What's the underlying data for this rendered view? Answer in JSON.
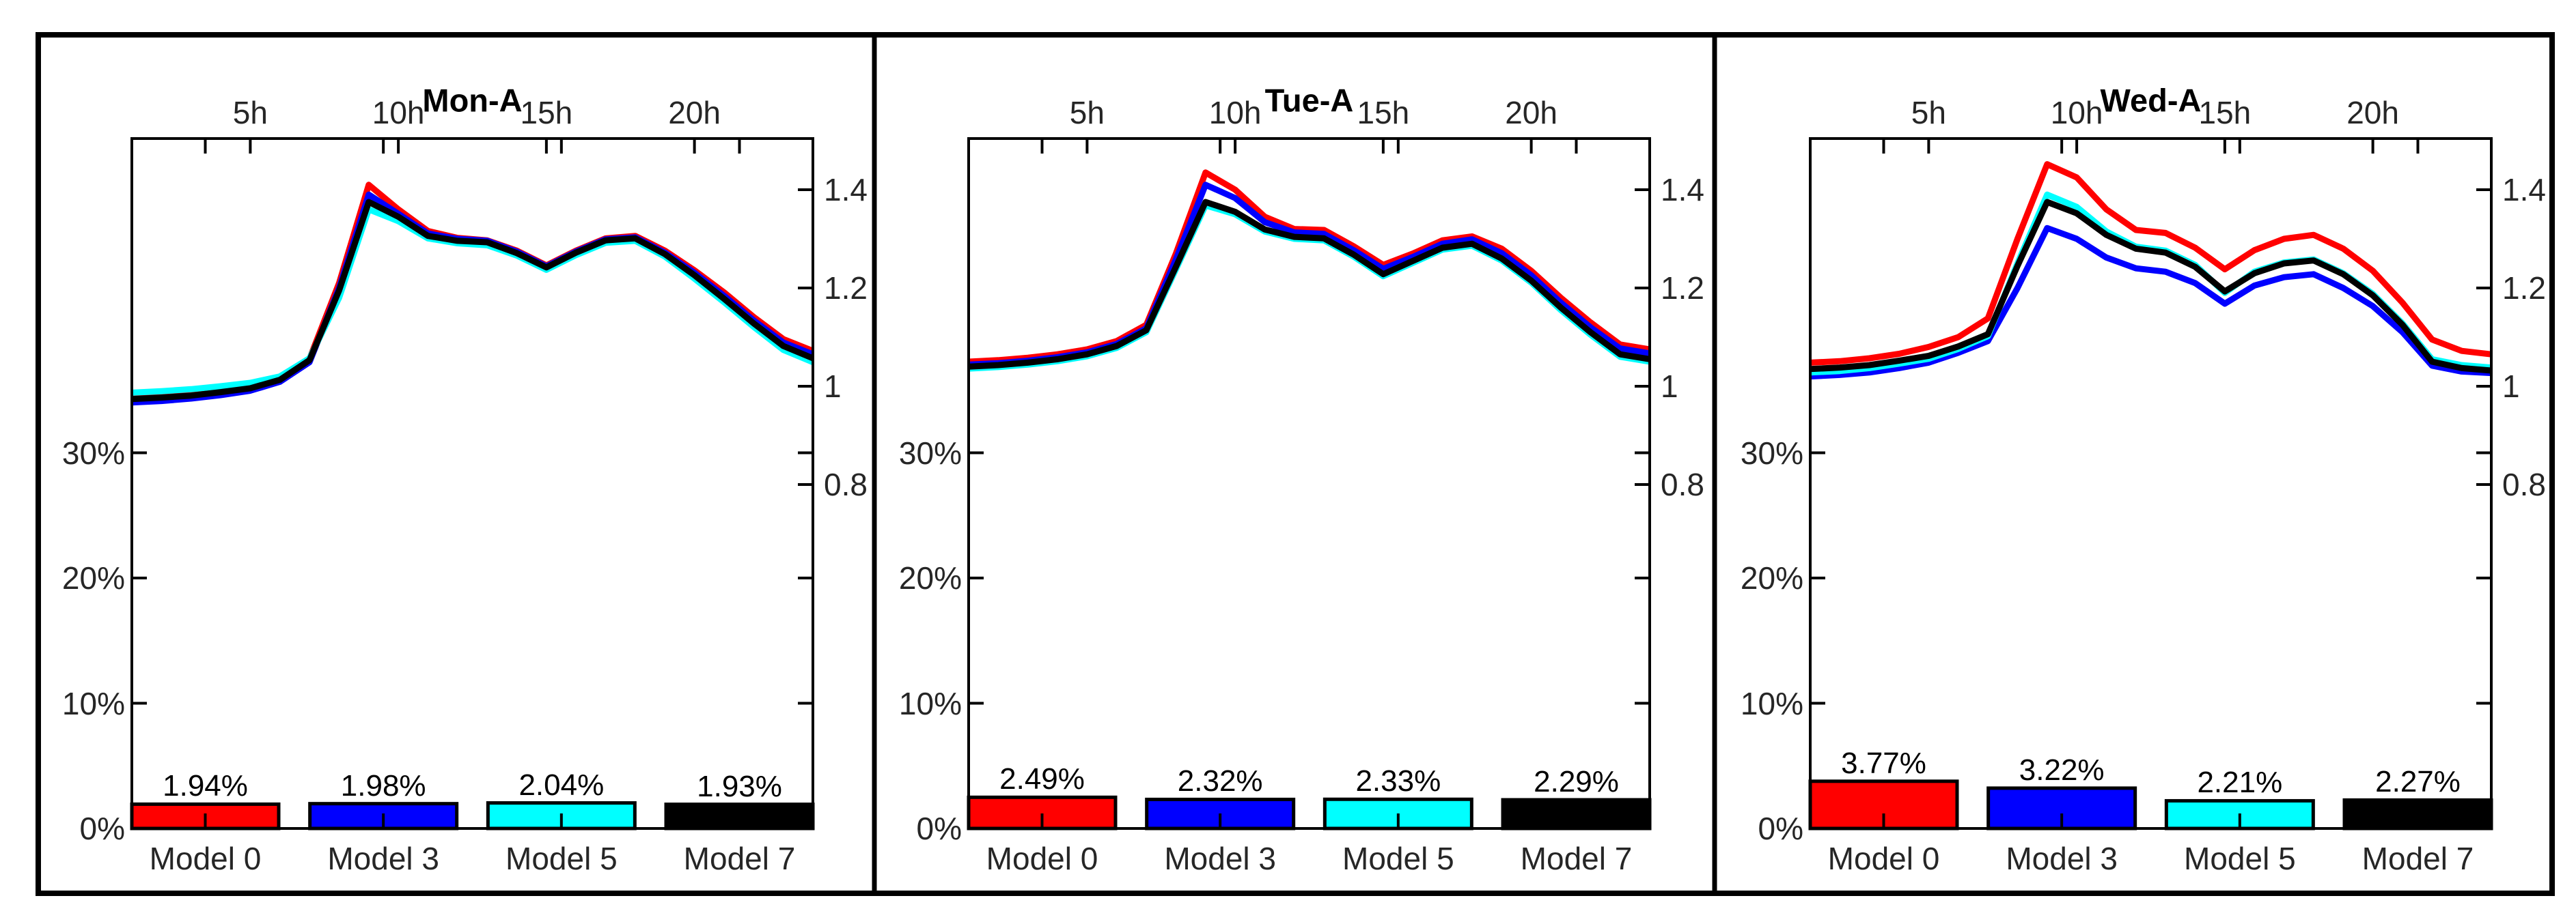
{
  "figure": {
    "background": "#ffffff",
    "frame_color": "#000000"
  },
  "models": [
    {
      "name": "Model 0",
      "color": "#ff0000"
    },
    {
      "name": "Model 3",
      "color": "#0000ff"
    },
    {
      "name": "Model 5",
      "color": "#00ffff"
    },
    {
      "name": "Model 7",
      "color": "#000000"
    }
  ],
  "chart_data": [
    {
      "type": "line+bar",
      "title": "Mon-A",
      "x_hours": [
        1,
        2,
        3,
        4,
        5,
        6,
        7,
        8,
        9,
        10,
        11,
        12,
        13,
        14,
        15,
        16,
        17,
        18,
        19,
        20,
        21,
        22,
        23,
        24
      ],
      "top_axis": {
        "tick_hours": [
          5,
          10,
          15,
          20
        ],
        "labels": [
          "5h",
          "10h",
          "15h",
          "20h"
        ],
        "range": [
          1,
          24
        ]
      },
      "right_axis": {
        "tick_values": [
          0.8,
          1,
          1.2,
          1.4
        ],
        "labels": [
          "0.8",
          "1",
          "1.2",
          "1.4"
        ]
      },
      "left_axis": {
        "tick_values": [
          0,
          10,
          20,
          30
        ],
        "labels": [
          "0%",
          "10%",
          "20%",
          "30%"
        ],
        "max_percent": 55
      },
      "series": [
        {
          "name": "Model 0",
          "color": "#ff0000",
          "values": [
            0.981,
            0.984,
            0.988,
            0.994,
            1.002,
            1.017,
            1.056,
            1.21,
            1.41,
            1.36,
            1.316,
            1.302,
            1.297,
            1.276,
            1.246,
            1.276,
            1.301,
            1.306,
            1.276,
            1.236,
            1.191,
            1.141,
            1.096,
            1.072
          ]
        },
        {
          "name": "Model 3",
          "color": "#0000ff",
          "values": [
            0.967,
            0.97,
            0.975,
            0.982,
            0.991,
            1.009,
            1.049,
            1.2,
            1.39,
            1.351,
            1.311,
            1.3,
            1.296,
            1.274,
            1.244,
            1.274,
            1.299,
            1.303,
            1.272,
            1.231,
            1.184,
            1.134,
            1.089,
            1.065
          ]
        },
        {
          "name": "Model 5",
          "color": "#00ffff",
          "values": [
            0.987,
            0.99,
            0.994,
            1.0,
            1.007,
            1.02,
            1.057,
            1.18,
            1.36,
            1.336,
            1.301,
            1.291,
            1.287,
            1.266,
            1.237,
            1.267,
            1.292,
            1.296,
            1.264,
            1.219,
            1.171,
            1.121,
            1.074,
            1.049
          ]
        },
        {
          "name": "Model 7",
          "color": "#000000",
          "values": [
            0.974,
            0.977,
            0.981,
            0.988,
            0.996,
            1.013,
            1.053,
            1.195,
            1.375,
            1.345,
            1.306,
            1.296,
            1.293,
            1.271,
            1.242,
            1.272,
            1.297,
            1.301,
            1.269,
            1.226,
            1.178,
            1.128,
            1.082,
            1.057
          ]
        }
      ],
      "bars": {
        "categories": [
          "Model 0",
          "Model 3",
          "Model 5",
          "Model 7"
        ],
        "values": [
          1.94,
          1.98,
          2.04,
          1.93
        ],
        "labels": [
          "1.94%",
          "1.98%",
          "2.04%",
          "1.93%"
        ],
        "colors": [
          "#ff0000",
          "#0000ff",
          "#00ffff",
          "#000000"
        ]
      }
    },
    {
      "type": "line+bar",
      "title": "Tue-A",
      "x_hours": [
        1,
        2,
        3,
        4,
        5,
        6,
        7,
        8,
        9,
        10,
        11,
        12,
        13,
        14,
        15,
        16,
        17,
        18,
        19,
        20,
        21,
        22,
        23,
        24
      ],
      "top_axis": {
        "tick_hours": [
          5,
          10,
          15,
          20
        ],
        "labels": [
          "5h",
          "10h",
          "15h",
          "20h"
        ],
        "range": [
          1,
          24
        ]
      },
      "right_axis": {
        "tick_values": [
          0.8,
          1,
          1.2,
          1.4
        ],
        "labels": [
          "0.8",
          "1",
          "1.2",
          "1.4"
        ]
      },
      "left_axis": {
        "tick_values": [
          0,
          10,
          20,
          30
        ],
        "labels": [
          "0%",
          "10%",
          "20%",
          "30%"
        ],
        "max_percent": 55
      },
      "series": [
        {
          "name": "Model 0",
          "color": "#ff0000",
          "values": [
            1.05,
            1.053,
            1.058,
            1.065,
            1.075,
            1.092,
            1.125,
            1.27,
            1.435,
            1.4,
            1.345,
            1.32,
            1.318,
            1.285,
            1.247,
            1.27,
            1.297,
            1.305,
            1.28,
            1.235,
            1.18,
            1.13,
            1.085,
            1.075
          ]
        },
        {
          "name": "Model 3",
          "color": "#0000ff",
          "values": [
            1.044,
            1.047,
            1.052,
            1.059,
            1.069,
            1.086,
            1.118,
            1.258,
            1.41,
            1.383,
            1.334,
            1.313,
            1.31,
            1.277,
            1.239,
            1.263,
            1.29,
            1.299,
            1.271,
            1.226,
            1.17,
            1.12,
            1.077,
            1.067
          ]
        },
        {
          "name": "Model 5",
          "color": "#00ffff",
          "values": [
            1.036,
            1.039,
            1.044,
            1.051,
            1.061,
            1.078,
            1.11,
            1.238,
            1.368,
            1.35,
            1.315,
            1.3,
            1.297,
            1.264,
            1.224,
            1.251,
            1.278,
            1.286,
            1.256,
            1.211,
            1.155,
            1.105,
            1.06,
            1.05
          ]
        },
        {
          "name": "Model 7",
          "color": "#000000",
          "values": [
            1.04,
            1.043,
            1.048,
            1.055,
            1.065,
            1.082,
            1.114,
            1.243,
            1.375,
            1.355,
            1.319,
            1.304,
            1.301,
            1.268,
            1.228,
            1.255,
            1.282,
            1.29,
            1.26,
            1.215,
            1.16,
            1.11,
            1.065,
            1.055
          ]
        }
      ],
      "bars": {
        "categories": [
          "Model 0",
          "Model 3",
          "Model 5",
          "Model 7"
        ],
        "values": [
          2.49,
          2.32,
          2.33,
          2.29
        ],
        "labels": [
          "2.49%",
          "2.32%",
          "2.33%",
          "2.29%"
        ],
        "colors": [
          "#ff0000",
          "#0000ff",
          "#00ffff",
          "#000000"
        ]
      }
    },
    {
      "type": "line+bar",
      "title": "Wed-A",
      "x_hours": [
        1,
        2,
        3,
        4,
        5,
        6,
        7,
        8,
        9,
        10,
        11,
        12,
        13,
        14,
        15,
        16,
        17,
        18,
        19,
        20,
        21,
        22,
        23,
        24
      ],
      "top_axis": {
        "tick_hours": [
          5,
          10,
          15,
          20
        ],
        "labels": [
          "5h",
          "10h",
          "15h",
          "20h"
        ],
        "range": [
          1,
          24
        ]
      },
      "right_axis": {
        "tick_values": [
          0.8,
          1,
          1.2,
          1.4
        ],
        "labels": [
          "0.8",
          "1",
          "1.2",
          "1.4"
        ]
      },
      "left_axis": {
        "tick_values": [
          0,
          10,
          20,
          30
        ],
        "labels": [
          "0%",
          "10%",
          "20%",
          "30%"
        ],
        "max_percent": 55
      },
      "series": [
        {
          "name": "Model 0",
          "color": "#ff0000",
          "values": [
            1.048,
            1.051,
            1.057,
            1.066,
            1.08,
            1.1,
            1.138,
            1.3,
            1.452,
            1.425,
            1.36,
            1.318,
            1.312,
            1.282,
            1.238,
            1.277,
            1.3,
            1.308,
            1.28,
            1.235,
            1.17,
            1.095,
            1.072,
            1.065
          ]
        },
        {
          "name": "Model 3",
          "color": "#0000ff",
          "values": [
            1.02,
            1.023,
            1.028,
            1.037,
            1.048,
            1.068,
            1.092,
            1.2,
            1.322,
            1.3,
            1.262,
            1.24,
            1.233,
            1.21,
            1.168,
            1.205,
            1.222,
            1.228,
            1.2,
            1.163,
            1.11,
            1.042,
            1.03,
            1.027
          ]
        },
        {
          "name": "Model 5",
          "color": "#00ffff",
          "values": [
            1.028,
            1.031,
            1.037,
            1.046,
            1.056,
            1.076,
            1.102,
            1.25,
            1.39,
            1.365,
            1.315,
            1.284,
            1.276,
            1.247,
            1.19,
            1.233,
            1.252,
            1.258,
            1.23,
            1.188,
            1.128,
            1.055,
            1.043,
            1.038
          ]
        },
        {
          "name": "Model 7",
          "color": "#000000",
          "values": [
            1.035,
            1.038,
            1.043,
            1.052,
            1.062,
            1.081,
            1.106,
            1.245,
            1.375,
            1.352,
            1.308,
            1.28,
            1.272,
            1.243,
            1.193,
            1.23,
            1.25,
            1.256,
            1.228,
            1.185,
            1.125,
            1.05,
            1.037,
            1.032
          ]
        }
      ],
      "bars": {
        "categories": [
          "Model 0",
          "Model 3",
          "Model 5",
          "Model 7"
        ],
        "values": [
          3.77,
          3.22,
          2.21,
          2.27
        ],
        "labels": [
          "3.77%",
          "3.22%",
          "2.21%",
          "2.27%"
        ],
        "colors": [
          "#ff0000",
          "#0000ff",
          "#00ffff",
          "#000000"
        ]
      }
    }
  ]
}
